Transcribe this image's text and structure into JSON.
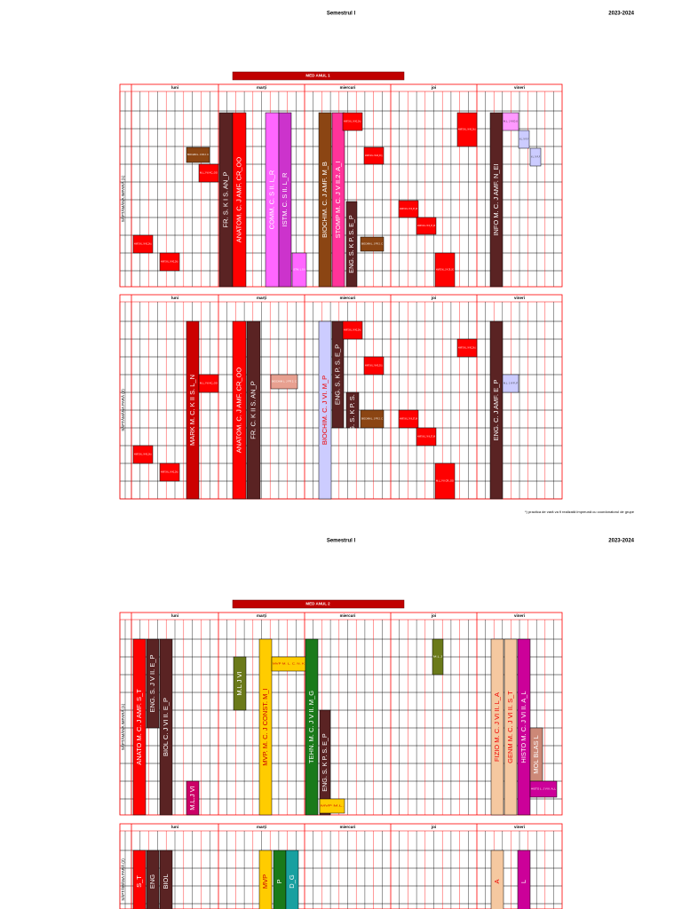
{
  "pages": [
    {
      "header": {
        "semester": "Semestrul I",
        "year": "2023-2024"
      },
      "title": "MED ANUL 1",
      "tables": [
        {
          "week": "SĂPTĂMÂNA IMPARĂ (1)",
          "days": [
            "luni",
            "marți",
            "miercuri",
            "joi",
            "vineri"
          ],
          "blocks": [
            {
              "label": "FR. S. K I S. AN_P"
            },
            {
              "label": "ANATOM. C. J AMF. CR_OO"
            },
            {
              "label": "COMM. C. S II. L_R"
            },
            {
              "label": "ISTM. C. S II. L_R"
            },
            {
              "label": "BIOCHIM. C. J AMF. M_B"
            },
            {
              "label": "STOMP M. C. J V II.2. A_I"
            },
            {
              "label": "ENG. S. K P. S. E_P"
            },
            {
              "label": "INFO M. C. J AMF. N_EI"
            },
            {
              "label": "ANATO M.L.J VI AZ_DA_I"
            },
            {
              "label": "ANATO M.L.J VI AZ_DA_I"
            },
            {
              "label": "BIOCHIM L. J FR 2. C"
            },
            {
              "label": "M.L.J VI AC_OO"
            },
            {
              "label": "ANATO M.L.J VI AZ_DA_I"
            },
            {
              "label": "ANATO M.L.J VI AZ_OO_I"
            },
            {
              "label": "BIOCHIM L. J FR 2. C"
            },
            {
              "label": "ANATO M.L.J VI K_ST_MI"
            },
            {
              "label": "ANATO M.L.J VI K_ST_MI"
            },
            {
              "label": "ANATO M.L.J VI AZ_DA_I"
            },
            {
              "label": "M.L. J VI D.U"
            },
            {
              "label": "M.L. J VI P_P"
            },
            {
              "label": "M.L. J VI P_P"
            },
            {
              "label": "ISTM. L.S II"
            },
            {
              "label": "ANATO M.L.J VI CR_OO"
            }
          ]
        },
        {
          "week": "SĂPTĂMÂNA PARĂ (2)",
          "days": [
            "luni",
            "marți",
            "miercuri",
            "joi",
            "vineri"
          ],
          "blocks": [
            {
              "label": "MARK M. C. K II S. L_N"
            },
            {
              "label": "ANATOM. C. J AMF. CR_OO"
            },
            {
              "label": "FR. C. K II S. AN_P"
            },
            {
              "label": "BIOCHIM. C. J VI. M_P"
            },
            {
              "label": "ENG. S. K P. S. E_P"
            },
            {
              "label": "ENG. S. K P. S. E_P"
            },
            {
              "label": "ENG. C. J AMF. E_P"
            },
            {
              "label": "ANATO M.L.J VI AZ_DA_I"
            },
            {
              "label": "ANATO M.L.J VI AZ_DA_I"
            },
            {
              "label": "ANATO M.L.J VI AZ_DA_I"
            },
            {
              "label": "ANATO M.L.J VI AZ_OO_I"
            },
            {
              "label": "BIOCHIM L. J FR 2. C"
            },
            {
              "label": "ANATO M.L.J VI K_ST_MI"
            },
            {
              "label": "ANATO M.L.J VI K_ST_MI"
            },
            {
              "label": "M.L.J VI CR_OO"
            },
            {
              "label": "ANATO M.L.J VI AZ_DA_I"
            },
            {
              "label": "BIOCHIM L. J FR 2. C"
            },
            {
              "label": "M.L.J VI AC_OO"
            },
            {
              "label": "M.L. J VI P_P"
            }
          ]
        }
      ],
      "note": "*) practica de vară va fi realizată împreună cu coordonatorul de grupe"
    },
    {
      "header": {
        "semester": "Semestrul I",
        "year": "2023-2024"
      },
      "title": "MED ANUL 2",
      "tables": [
        {
          "week": "SĂPTĂMÂNA IMPARĂ (1)",
          "days": [
            "luni",
            "marți",
            "miercuri",
            "joi",
            "vineri"
          ],
          "blocks": [
            {
              "label": "ANATO M. C. J AMF. S_T"
            },
            {
              "label": "ENG. S. J V II. E_P"
            },
            {
              "label": "BIOL C. J VI II. E_P"
            },
            {
              "label": "M.L.J VI"
            },
            {
              "label": "M.L J VI"
            },
            {
              "label": "MVP. M. C. J CONST. M_I"
            },
            {
              "label": "MVP M. L. C. N. K"
            },
            {
              "label": "TEHN. M. C. J V II. M_G"
            },
            {
              "label": "ENG. S. K P. S. E_P"
            },
            {
              "label": "MVP M.L."
            },
            {
              "label": "FIZIO M. C. J VI II. L_A"
            },
            {
              "label": "GENM M. C. J VI II. S_T"
            },
            {
              "label": "HISTO M. C. J VI II. A_L"
            },
            {
              "label": "MOL BLAS L"
            },
            {
              "label": "HISTO L. J VI II. A_L"
            },
            {
              "label": "M.L J"
            }
          ]
        },
        {
          "week": "SĂPTĂMÂNA PARĂ (2)",
          "days": [
            "luni",
            "marți",
            "miercuri",
            "joi",
            "vineri"
          ],
          "blocks": [
            {
              "label": "S_T"
            },
            {
              "label": "ENG"
            },
            {
              "label": "BIOL"
            },
            {
              "label": "MVP"
            },
            {
              "label": "P"
            },
            {
              "label": "D_G"
            },
            {
              "label": "A"
            },
            {
              "label": "L"
            }
          ]
        }
      ]
    }
  ]
}
